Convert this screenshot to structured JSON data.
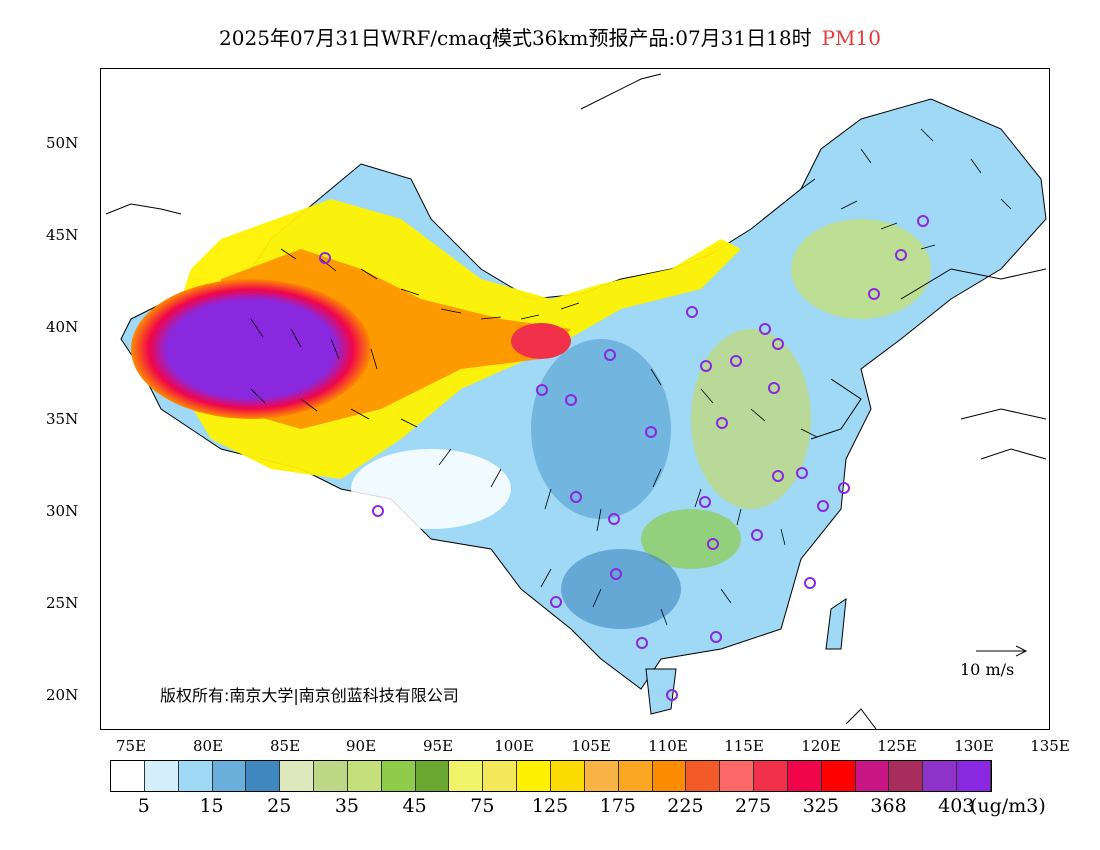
{
  "title": {
    "main": "2025年07月31日WRF/cmaq模式36km预报产品:07月31日18时",
    "pollutant": "PM10",
    "pollutant_color": "#e63a3a"
  },
  "axes": {
    "lat_labels": [
      "50N",
      "45N",
      "40N",
      "35N",
      "30N",
      "25N",
      "20N"
    ],
    "lon_labels": [
      "75E",
      "80E",
      "85E",
      "90E",
      "95E",
      "100E",
      "105E",
      "110E",
      "115E",
      "120E",
      "125E",
      "130E",
      "135E"
    ]
  },
  "map": {
    "copyright": "版权所有:南京大学|南京创蓝科技有限公司",
    "wind_reference": "10 m/s"
  },
  "colorbar": {
    "colors": [
      "#ffffff",
      "#d4eefb",
      "#9fd9f5",
      "#6aaedb",
      "#3f87bf",
      "#dde9bd",
      "#bcd886",
      "#c4e07a",
      "#8fcc4b",
      "#6aa832",
      "#f0f46a",
      "#f2e85a",
      "#fff200",
      "#fcdc00",
      "#f7b444",
      "#f9a623",
      "#fd8b00",
      "#f25a2a",
      "#fd6969",
      "#f1314a",
      "#f0054b",
      "#ff0000",
      "#c81785",
      "#a82c5c",
      "#8e32c9",
      "#8a28e0"
    ],
    "labels": [
      "5",
      "15",
      "25",
      "35",
      "45",
      "75",
      "125",
      "175",
      "225",
      "275",
      "325",
      "368",
      "403"
    ],
    "unit": "(ug/m3)"
  },
  "stations": 30
}
